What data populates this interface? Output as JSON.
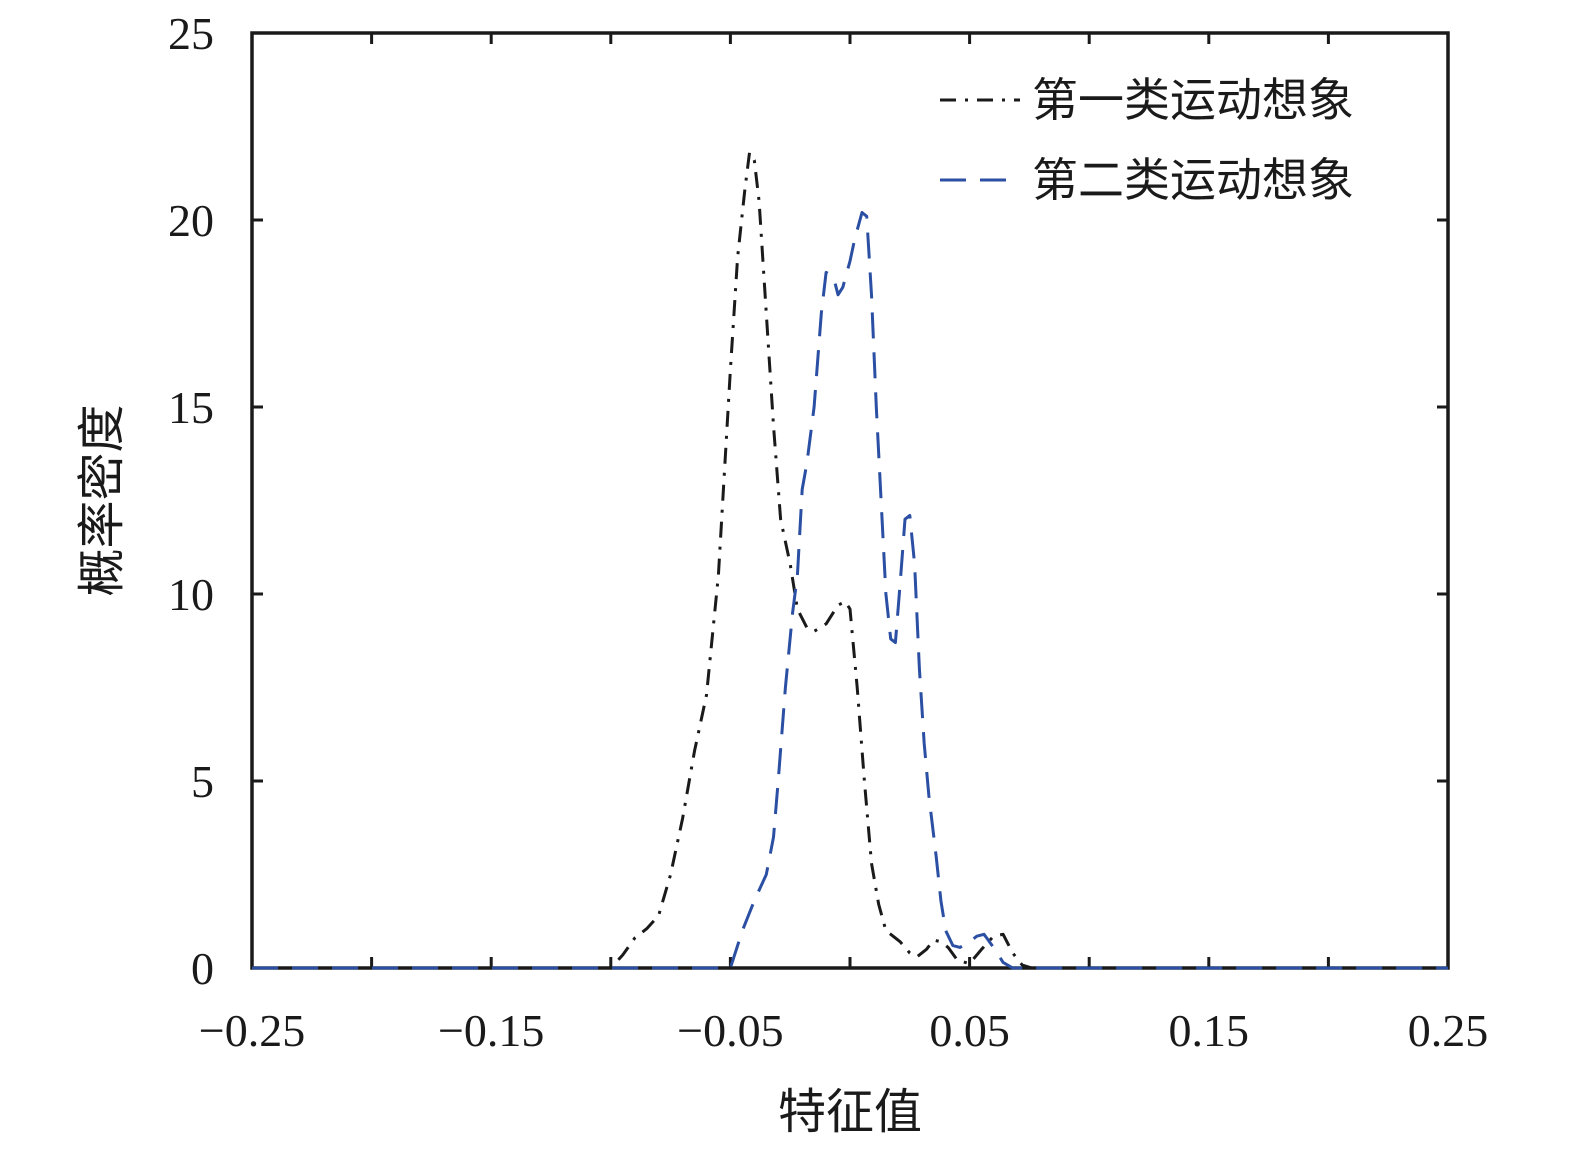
{
  "chart_data": {
    "type": "line",
    "title": "",
    "xlabel": "特征值",
    "ylabel": "概率密度",
    "xlim": [
      -0.25,
      0.25
    ],
    "ylim": [
      0,
      25
    ],
    "xticks": [
      -0.25,
      -0.15,
      -0.05,
      0.05,
      0.15,
      0.25
    ],
    "xtick_labels": [
      "−0.25",
      "−0.15",
      "−0.05",
      "0.05",
      "0.15",
      "0.25"
    ],
    "xticks_minor": [
      -0.2,
      -0.1,
      0,
      0.1,
      0.2
    ],
    "yticks": [
      0,
      5,
      10,
      15,
      20,
      25
    ],
    "ytick_labels": [
      "0",
      "5",
      "10",
      "15",
      "20",
      "25"
    ],
    "grid": false,
    "legend_position": "top-right",
    "series": [
      {
        "name": "第一类运动想象",
        "color": "#1a1a1a",
        "style": "dashdot",
        "x": [
          -0.25,
          -0.1,
          -0.095,
          -0.09,
          -0.085,
          -0.08,
          -0.075,
          -0.07,
          -0.065,
          -0.06,
          -0.055,
          -0.05,
          -0.047,
          -0.044,
          -0.042,
          -0.04,
          -0.038,
          -0.035,
          -0.032,
          -0.029,
          -0.025,
          -0.022,
          -0.018,
          -0.015,
          -0.01,
          -0.005,
          -0.002,
          0.0,
          0.003,
          0.006,
          0.009,
          0.012,
          0.015,
          0.018,
          0.021,
          0.025,
          0.028,
          0.032,
          0.035,
          0.038,
          0.041,
          0.045,
          0.05,
          0.055,
          0.06,
          0.064,
          0.068,
          0.072,
          0.076,
          0.25
        ],
        "y": [
          0,
          0,
          0.35,
          0.8,
          1.05,
          1.4,
          2.5,
          4.0,
          5.8,
          7.3,
          10.5,
          16.0,
          19.0,
          20.8,
          21.8,
          21.6,
          20.5,
          17.5,
          14.5,
          12.0,
          10.8,
          9.6,
          9.1,
          9.0,
          9.2,
          9.7,
          9.8,
          9.6,
          7.5,
          5.0,
          2.8,
          1.7,
          1.0,
          0.85,
          0.7,
          0.4,
          0.3,
          0.5,
          0.75,
          0.7,
          0.55,
          0.2,
          0.12,
          0.5,
          0.85,
          0.9,
          0.4,
          0.08,
          0,
          0
        ]
      },
      {
        "name": "第二类运动想象",
        "color": "#2b4fa3",
        "style": "dashed",
        "x": [
          -0.25,
          -0.05,
          -0.045,
          -0.04,
          -0.035,
          -0.032,
          -0.03,
          -0.027,
          -0.024,
          -0.022,
          -0.02,
          -0.018,
          -0.015,
          -0.012,
          -0.01,
          -0.007,
          -0.005,
          -0.003,
          0.0,
          0.002,
          0.005,
          0.007,
          0.009,
          0.011,
          0.013,
          0.015,
          0.017,
          0.019,
          0.021,
          0.023,
          0.025,
          0.027,
          0.029,
          0.031,
          0.033,
          0.036,
          0.038,
          0.04,
          0.043,
          0.046,
          0.05,
          0.053,
          0.056,
          0.06,
          0.064,
          0.068,
          0.072,
          0.076,
          0.25
        ],
        "y": [
          0,
          0,
          1.0,
          1.8,
          2.5,
          3.5,
          5.0,
          7.5,
          9.5,
          10.5,
          12.8,
          13.5,
          15.0,
          17.5,
          18.6,
          18.5,
          18.0,
          18.2,
          18.9,
          19.5,
          20.2,
          20.1,
          18.0,
          15.0,
          12.5,
          10.0,
          8.8,
          8.7,
          10.3,
          12.0,
          12.1,
          10.8,
          8.0,
          6.0,
          4.6,
          3.0,
          1.8,
          1.0,
          0.6,
          0.55,
          0.7,
          0.85,
          0.9,
          0.55,
          0.15,
          0.0,
          0,
          0,
          0
        ]
      }
    ]
  }
}
